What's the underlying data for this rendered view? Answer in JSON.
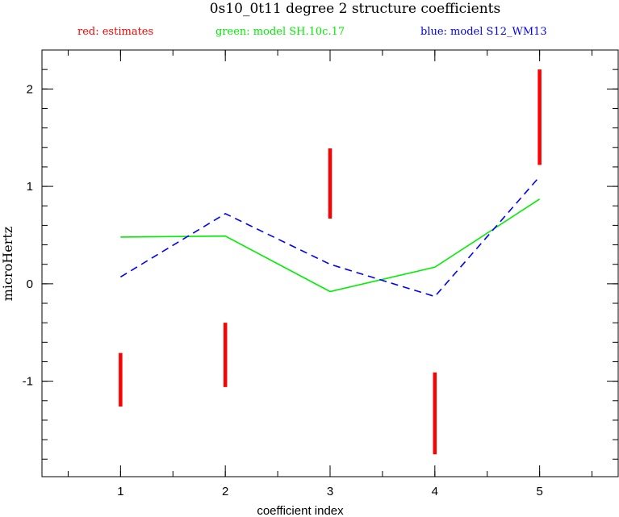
{
  "chart_data": {
    "type": "line",
    "title": "0s10_0t11 degree 2 structure coefficients",
    "xlabel": "coefficient index",
    "ylabel": "microHertz",
    "xlim": [
      0.25,
      5.75
    ],
    "ylim": [
      -1.98,
      2.4
    ],
    "x_ticks": [
      1,
      2,
      3,
      4,
      5
    ],
    "y_ticks": [
      -1,
      0,
      1,
      2
    ],
    "legend": [
      {
        "text": "red: estimates",
        "color": "#ff0000"
      },
      {
        "text": "green: model SH.10c.17",
        "color": "#00ee00"
      },
      {
        "text": "blue: model S12_WM13",
        "color": "#0000ff"
      }
    ],
    "error_bars": {
      "color": "#ff0000",
      "x": [
        1,
        2,
        3,
        4,
        5
      ],
      "low": [
        -1.26,
        -1.06,
        0.67,
        -1.75,
        1.22
      ],
      "high": [
        -0.71,
        -0.4,
        1.39,
        -0.91,
        2.2
      ]
    },
    "series": [
      {
        "style": "solid",
        "color": "#00ee00",
        "x": [
          1,
          2,
          3,
          4,
          5
        ],
        "values": [
          0.48,
          0.49,
          -0.08,
          0.17,
          0.87
        ]
      },
      {
        "style": "dashed",
        "color": "#0000ff",
        "x": [
          1,
          2,
          3,
          4,
          5
        ],
        "values": [
          0.07,
          0.72,
          0.2,
          -0.13,
          1.1
        ]
      }
    ]
  }
}
